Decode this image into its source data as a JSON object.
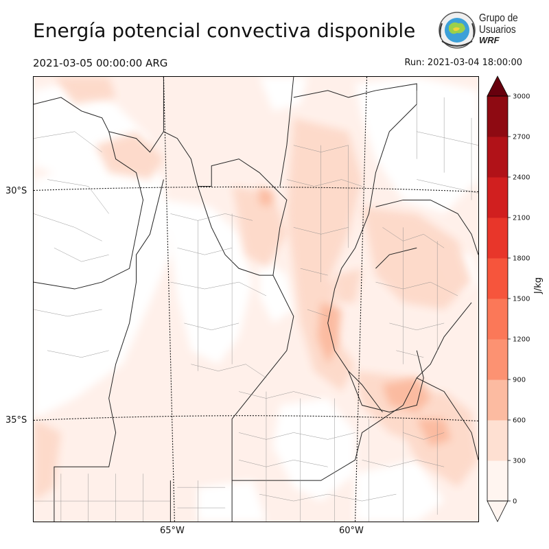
{
  "header": {
    "title": "Energía potencial convectiva disponible",
    "valid_time": "2021-03-05 00:00:00 ARG",
    "run_time": "Run: 2021-03-04 18:00:00"
  },
  "logo": {
    "line1": "Grupo de",
    "line2": "Usuarios",
    "line3": "WRF"
  },
  "map": {
    "lat_labels": [
      "30°S",
      "35°S"
    ],
    "lon_labels": [
      "65°W",
      "60°W"
    ]
  },
  "colorbar": {
    "units": "J/kg",
    "ticks": [
      "0",
      "300",
      "600",
      "900",
      "1200",
      "1500",
      "1800",
      "2100",
      "2400",
      "2700",
      "3000"
    ],
    "colors": [
      "#fff5f0",
      "#fee0d2",
      "#fcbba1",
      "#fc9272",
      "#fb7858",
      "#f6553c",
      "#e8362a",
      "#d11f1f",
      "#b11218",
      "#8e0a12",
      "#67000d"
    ]
  }
}
